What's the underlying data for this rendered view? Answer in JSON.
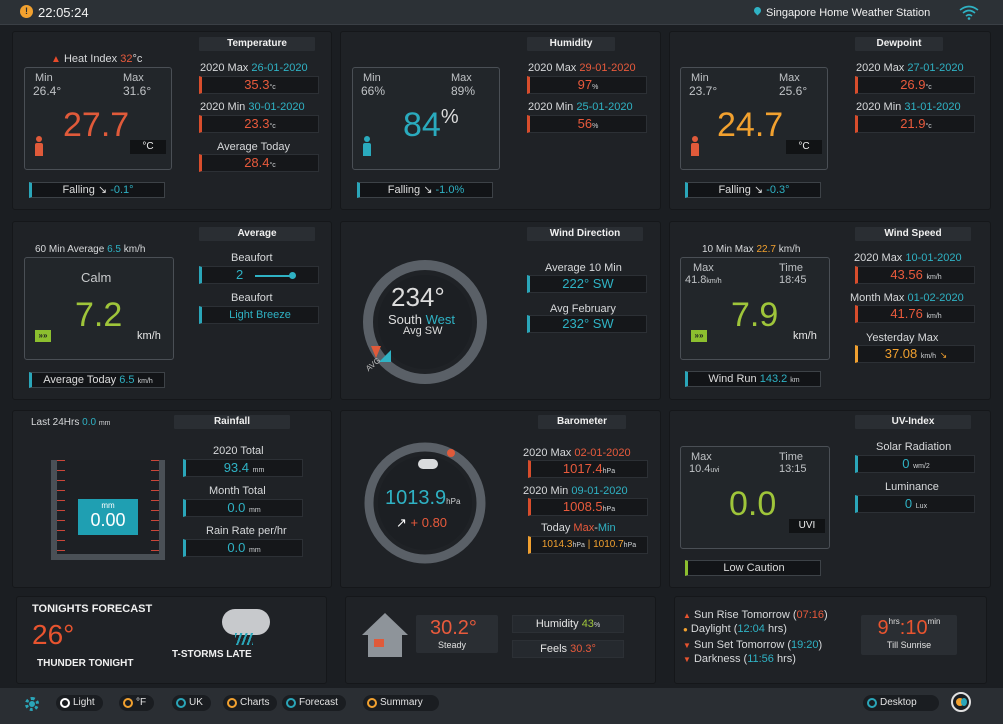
{
  "topbar": {
    "time": "22:05:24",
    "station": "Singapore Home Weather Station"
  },
  "temperature": {
    "header": "Temperature",
    "heat_index_label": "Heat Index",
    "heat_index_value": "32",
    "heat_index_unit": "°c",
    "min_label": "Min",
    "min_value": "26.4°",
    "max_label": "Max",
    "max_value": "31.6°",
    "current": "27.7",
    "unit": "°C",
    "year_max_label": "2020 Max",
    "year_max_date": "26-01-2020",
    "year_max_value": "35.3",
    "year_min_label": "2020 Min",
    "year_min_date": "30-01-2020",
    "year_min_value": "23.3",
    "avg_label": "Average Today",
    "avg_value": "28.4",
    "value_unit": "°c",
    "trend_label": "Falling",
    "trend_value": "-0.1°"
  },
  "humidity": {
    "header": "Humidity",
    "min_label": "Min",
    "min_value": "66%",
    "max_label": "Max",
    "max_value": "89%",
    "current": "84",
    "current_unit": "%",
    "year_max_label": "2020 Max",
    "year_max_date": "29-01-2020",
    "year_max_value": "97",
    "year_min_label": "2020 Min",
    "year_min_date": "25-01-2020",
    "year_min_value": "56",
    "value_unit": "%",
    "trend_label": "Falling",
    "trend_value": "-1.0%"
  },
  "dewpoint": {
    "header": "Dewpoint",
    "min_label": "Min",
    "min_value": "23.7°",
    "max_label": "Max",
    "max_value": "25.6°",
    "current": "24.7",
    "unit": "°C",
    "year_max_label": "2020 Max",
    "year_max_date": "27-01-2020",
    "year_max_value": "26.9",
    "year_min_label": "2020 Min",
    "year_min_date": "31-01-2020",
    "year_min_value": "21.9",
    "value_unit": "°c",
    "trend_label": "Falling",
    "trend_value": "-0.3°"
  },
  "average_wind": {
    "header": "Average",
    "avg60_label": "60 Min Average",
    "avg60_value": "6.5",
    "avg60_unit": "km/h",
    "condition": "Calm",
    "current": "7.2",
    "unit": "km/h",
    "beaufort_label": "Beaufort",
    "beaufort_value": "2",
    "beaufort_desc_label": "Beaufort",
    "beaufort_desc": "Light Breeze",
    "avg_today_label": "Average Today",
    "avg_today_value": "6.5",
    "avg_today_unit": "km/h"
  },
  "wind_direction": {
    "header": "Wind Direction",
    "degrees": "234°",
    "dir_word1": "South",
    "dir_word2": "West",
    "avg_label": "Avg SW",
    "marker_label": "AVG",
    "avg10_label": "Average 10 Min",
    "avg10_value": "222°  SW",
    "avgfeb_label": "Avg February",
    "avgfeb_value": "232°  SW"
  },
  "wind_speed": {
    "header": "Wind Speed",
    "max10_label": "10 Min Max",
    "max10_value": "22.7",
    "max10_unit": "km/h",
    "max_label": "Max",
    "max_value": "41.8",
    "max_unit": "km/h",
    "time_label": "Time",
    "time_value": "18:45",
    "current": "7.9",
    "unit": "km/h",
    "year_max_label": "2020 Max",
    "year_max_date": "10-01-2020",
    "year_max_value": "43.56",
    "month_max_label": "Month Max",
    "month_max_date": "01-02-2020",
    "month_max_value": "41.76",
    "yesterday_label": "Yesterday Max",
    "yesterday_value": "37.08",
    "value_unit": "km/h",
    "windrun_label": "Wind Run",
    "windrun_value": "143.2",
    "windrun_unit": "km"
  },
  "rainfall": {
    "header": "Rainfall",
    "last24_label": "Last 24Hrs",
    "last24_value": "0.0",
    "last24_unit": "mm",
    "gauge_unit": "mm",
    "gauge_value": "0.00",
    "year_total_label": "2020 Total",
    "year_total_value": "93.4",
    "month_total_label": "Month Total",
    "month_total_value": "0.0",
    "rate_label": "Rain Rate per/hr",
    "rate_value": "0.0",
    "value_unit": "mm"
  },
  "barometer": {
    "header": "Barometer",
    "current": "1013.9",
    "unit": "hPa",
    "trend": "+ 0.80",
    "year_max_label": "2020 Max",
    "year_max_date": "02-01-2020",
    "year_max_value": "1017.4",
    "year_min_label": "2020 Min",
    "year_min_date": "09-01-2020",
    "year_min_value": "1008.5",
    "today_label": "Today",
    "today_max": "Max",
    "today_sep": "-",
    "today_min": "Min",
    "today_max_value": "1014.3",
    "today_min_value": "1010.7",
    "value_unit": "hPa"
  },
  "uv": {
    "header": "UV-Index",
    "max_label": "Max",
    "max_value": "10.4",
    "max_unit": "uvi",
    "time_label": "Time",
    "time_value": "13:15",
    "current": "0.0",
    "unit": "UVI",
    "caution": "Low Caution",
    "solar_label": "Solar Radiation",
    "solar_value": "0",
    "solar_unit": "wm/2",
    "lum_label": "Luminance",
    "lum_value": "0",
    "lum_unit": "Lux"
  },
  "forecast": {
    "title": "TONIGHTS FORECAST",
    "temp": "26°",
    "desc1": "THUNDER TONIGHT",
    "desc2": "T-STORMS LATE"
  },
  "indoor": {
    "temp": "30.2°",
    "steady": "Steady",
    "humidity_label": "Humidity",
    "humidity_value": "43",
    "humidity_unit": "%",
    "feels_label": "Feels",
    "feels_value": "30.3°"
  },
  "sun": {
    "rise_label": "Sun Rise Tomorrow",
    "rise_time": "07:16",
    "daylight_label": "Daylight",
    "daylight_value": "12:04",
    "daylight_unit": "hrs",
    "set_label": "Sun Set Tomorrow",
    "set_time": "19:20",
    "dark_label": "Darkness",
    "dark_value": "11:56",
    "dark_unit": "hrs",
    "countdown_h": "9",
    "countdown_h_unit": "hrs",
    "countdown_sep": ":",
    "countdown_m": "10",
    "countdown_m_unit": "min",
    "countdown_label": "Till Sunrise"
  },
  "bottombar": {
    "light": "Light",
    "unit_f": "°F",
    "uk": "UK",
    "charts": "Charts",
    "forecast": "Forecast",
    "summary": "Summary",
    "desktop": "Desktop"
  },
  "colors": {
    "red": "#e85a3c",
    "teal": "#2fb2c4",
    "orange": "#f2a12f",
    "green": "#9fc53a"
  }
}
